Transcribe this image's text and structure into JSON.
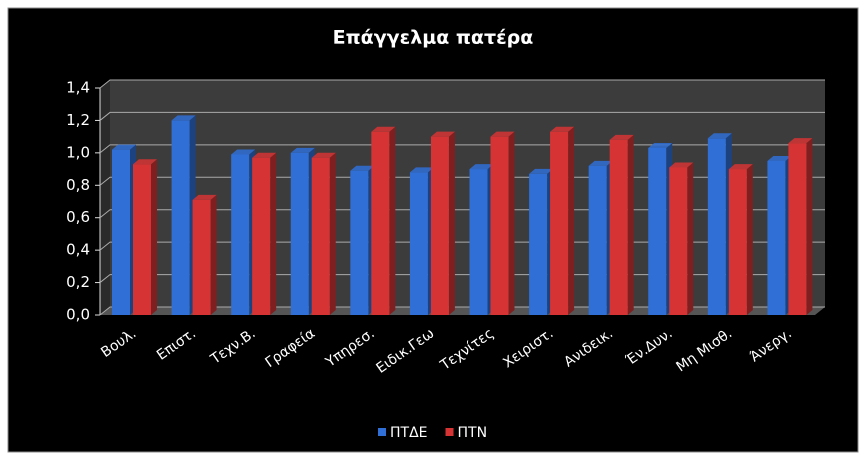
{
  "chart_data": {
    "type": "bar",
    "title": "Επάγγελμα πατέρα",
    "categories": [
      "Βουλ.",
      "Επιστ.",
      "Τεχν.Β.",
      "Γραφεία",
      "Υπηρεσ.",
      "Ειδικ.Γεω",
      "Τεχνίτες",
      "Χειριστ.",
      "Ανιδεικ.",
      "Έν.Δυν.",
      "Μη Μισθ.",
      "Άνεργ."
    ],
    "series": [
      {
        "name": "ΠΤΔΕ",
        "color": "#2f6fd6",
        "values": [
          1.02,
          1.2,
          0.99,
          1.0,
          0.89,
          0.88,
          0.9,
          0.87,
          0.92,
          1.03,
          1.09,
          0.95
        ]
      },
      {
        "name": "ΠΤΝ",
        "color": "#d63434",
        "values": [
          0.93,
          0.71,
          0.97,
          0.97,
          1.13,
          1.1,
          1.1,
          1.13,
          1.08,
          0.91,
          0.9,
          1.06
        ]
      }
    ],
    "ylim": [
      0,
      1.4
    ],
    "yticks": [
      {
        "value": 0,
        "label": "0,0"
      },
      {
        "value": 0.2,
        "label": "0,2"
      },
      {
        "value": 0.4,
        "label": "0,4"
      },
      {
        "value": 0.6,
        "label": "0,6"
      },
      {
        "value": 0.8,
        "label": "0,8"
      },
      {
        "value": 1.0,
        "label": "1,0"
      },
      {
        "value": 1.2,
        "label": "1,2"
      },
      {
        "value": 1.4,
        "label": "1,4"
      }
    ],
    "grid": true,
    "legend": "bottom"
  }
}
